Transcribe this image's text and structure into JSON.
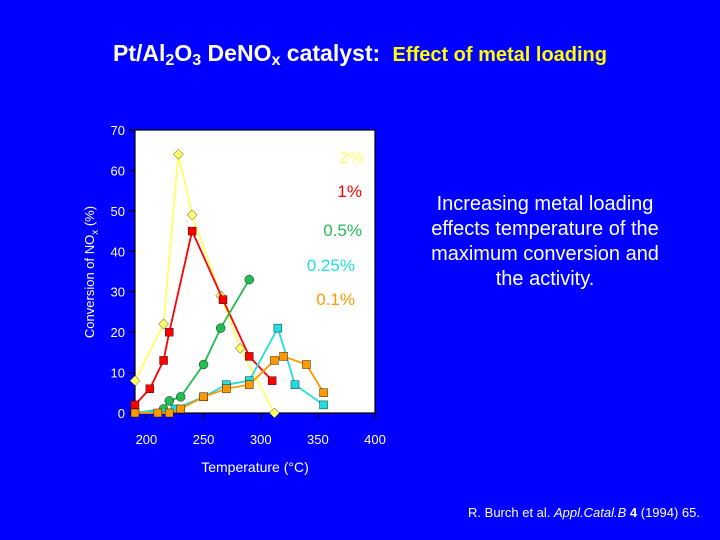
{
  "title": {
    "prefix": "Pt/Al",
    "sub1": "2",
    "mid": "O",
    "sub2": "3",
    "mid2": " DeNO",
    "sub3": "x",
    "mid3": " catalyst: ",
    "rest": "Effect of metal loading"
  },
  "annotation": "Increasing metal loading effects temperature of the maximum conversion and the activity.",
  "reference": {
    "authors": "R. Burch et al. ",
    "journal": "Appl.Catal.B",
    "volume": " 4",
    "year": " (1994) 65."
  },
  "chart_data": {
    "type": "line",
    "xlabel": "Temperature (°C)",
    "ylabel_main": "Conversion of NO",
    "ylabel_sub": "x",
    "ylabel_tail": " (%)",
    "xlim": [
      190,
      400
    ],
    "ylim": [
      0,
      70
    ],
    "xticks": [
      200,
      250,
      300,
      350,
      400
    ],
    "yticks": [
      0,
      10,
      20,
      30,
      40,
      50,
      60,
      70
    ],
    "series": [
      {
        "name": "2%",
        "label": "2%",
        "color": "#ffff66",
        "marker": "diamond",
        "x": [
          190,
          215,
          228,
          240,
          265,
          282,
          312
        ],
        "y": [
          8,
          22,
          64,
          49,
          29,
          16,
          0
        ]
      },
      {
        "name": "1%",
        "label": "1%",
        "color": "#ff0000",
        "marker": "square",
        "x": [
          190,
          203,
          215,
          220,
          240,
          267,
          290,
          310
        ],
        "y": [
          2,
          6,
          13,
          20,
          45,
          28,
          14,
          8
        ]
      },
      {
        "name": "0.5%",
        "label": "0.5%",
        "color": "#22bb55",
        "marker": "circle",
        "x": [
          190,
          215,
          220,
          230,
          250,
          265,
          290
        ],
        "y": [
          0,
          1,
          3,
          4,
          12,
          21,
          33
        ]
      },
      {
        "name": "0.25%",
        "label": "0.25%",
        "color": "#22dddd",
        "marker": "square",
        "x": [
          190,
          225,
          250,
          270,
          290,
          315,
          330,
          355
        ],
        "y": [
          0,
          1,
          4,
          7,
          8,
          21,
          7,
          2
        ]
      },
      {
        "name": "0.1%",
        "label": "0.1%",
        "color": "#ff9900",
        "marker": "square",
        "x": [
          190,
          210,
          220,
          230,
          250,
          270,
          290,
          312,
          320,
          340,
          355
        ],
        "y": [
          0,
          0,
          0,
          1,
          4,
          6,
          7,
          13,
          14,
          12,
          5
        ]
      }
    ]
  }
}
